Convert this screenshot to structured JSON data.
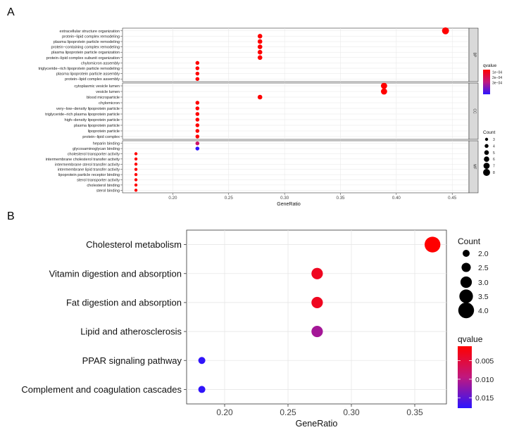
{
  "chart_data": [
    {
      "panel": "A",
      "type": "scatter",
      "xlabel": "GeneRatio",
      "xlim": [
        0.155,
        0.465
      ],
      "xticks": [
        0.2,
        0.25,
        0.3,
        0.35,
        0.4,
        0.45
      ],
      "xtick_labels": [
        "0.20",
        "0.25",
        "0.30",
        "0.35",
        "0.40",
        "0.45"
      ],
      "facets": [
        {
          "name": "BP",
          "terms": [
            {
              "label": "extracellular structure organization",
              "x": 0.444,
              "count": 8,
              "q": 5e-05
            },
            {
              "label": "protein−lipid complex remodeling",
              "x": 0.278,
              "count": 5,
              "q": 5e-05
            },
            {
              "label": "plasma lipoprotein particle remodeling",
              "x": 0.278,
              "count": 5,
              "q": 5e-05
            },
            {
              "label": "protein−containing complex remodeling",
              "x": 0.278,
              "count": 5,
              "q": 5e-05
            },
            {
              "label": "plasma lipoprotein particle organization",
              "x": 0.278,
              "count": 5,
              "q": 5e-05
            },
            {
              "label": "protein−lipid complex subunit organization",
              "x": 0.278,
              "count": 5,
              "q": 5e-05
            },
            {
              "label": "chylomicron assembly",
              "x": 0.222,
              "count": 4,
              "q": 5e-05
            },
            {
              "label": "triglyceride−rich lipoprotein particle remodeling",
              "x": 0.222,
              "count": 4,
              "q": 5e-05
            },
            {
              "label": "plasma lipoprotein particle assembly",
              "x": 0.222,
              "count": 4,
              "q": 5e-05
            },
            {
              "label": "protein−lipid complex assembly",
              "x": 0.222,
              "count": 4,
              "q": 5e-05
            }
          ]
        },
        {
          "name": "CC",
          "terms": [
            {
              "label": "cytoplasmic vesicle lumen",
              "x": 0.389,
              "count": 7,
              "q": 5e-05
            },
            {
              "label": "vesicle lumen",
              "x": 0.389,
              "count": 7,
              "q": 5e-05
            },
            {
              "label": "blood microparticle",
              "x": 0.278,
              "count": 5,
              "q": 5e-05
            },
            {
              "label": "chylomicron",
              "x": 0.222,
              "count": 4,
              "q": 5e-05
            },
            {
              "label": "very−low−density lipoprotein particle",
              "x": 0.222,
              "count": 4,
              "q": 5e-05
            },
            {
              "label": "triglyceride−rich plasma lipoprotein particle",
              "x": 0.222,
              "count": 4,
              "q": 5e-05
            },
            {
              "label": "high−density lipoprotein particle",
              "x": 0.222,
              "count": 4,
              "q": 5e-05
            },
            {
              "label": "plasma lipoprotein particle",
              "x": 0.222,
              "count": 4,
              "q": 5e-05
            },
            {
              "label": "lipoprotein particle",
              "x": 0.222,
              "count": 4,
              "q": 5e-05
            },
            {
              "label": "protein−lipid complex",
              "x": 0.222,
              "count": 4,
              "q": 5e-05
            }
          ]
        },
        {
          "name": "MF",
          "terms": [
            {
              "label": "heparin binding",
              "x": 0.222,
              "count": 4,
              "q": 0.00024
            },
            {
              "label": "glycosaminoglycan binding",
              "x": 0.222,
              "count": 4,
              "q": 0.00052
            },
            {
              "label": "cholesterol transporter activity",
              "x": 0.167,
              "count": 3,
              "q": 5e-05
            },
            {
              "label": "intermembrane cholesterol transfer activity",
              "x": 0.167,
              "count": 3,
              "q": 5e-05
            },
            {
              "label": "intermembrane sterol transfer activity",
              "x": 0.167,
              "count": 3,
              "q": 5e-05
            },
            {
              "label": "intermembrane lipid transfer activity",
              "x": 0.167,
              "count": 3,
              "q": 5e-05
            },
            {
              "label": "lipoprotein particle receptor binding",
              "x": 0.167,
              "count": 3,
              "q": 5e-05
            },
            {
              "label": "sterol transporter activity",
              "x": 0.167,
              "count": 3,
              "q": 5e-05
            },
            {
              "label": "cholesterol binding",
              "x": 0.167,
              "count": 3,
              "q": 5e-05
            },
            {
              "label": "sterol binding",
              "x": 0.167,
              "count": 3,
              "q": 5e-05
            }
          ]
        }
      ],
      "legend": {
        "color_title": "qvalue",
        "color_labels": [
          "1e−04",
          "2e−04",
          "3e−04"
        ],
        "color_values": [
          0.0001,
          0.0002,
          0.0003
        ],
        "color_range": [
          5e-05,
          0.00052
        ],
        "size_title": "Count",
        "size_values": [
          3,
          4,
          5,
          6,
          7,
          8
        ]
      }
    },
    {
      "panel": "B",
      "type": "scatter",
      "xlabel": "GeneRatio",
      "xlim": [
        0.17,
        0.375
      ],
      "xticks": [
        0.2,
        0.25,
        0.3,
        0.35
      ],
      "xtick_labels": [
        "0.20",
        "0.25",
        "0.30",
        "0.35"
      ],
      "terms": [
        {
          "label": "Cholesterol metabolism",
          "x": 0.364,
          "count": 4,
          "q": 0.0011
        },
        {
          "label": "Vitamin digestion and absorption",
          "x": 0.273,
          "count": 3,
          "q": 0.0032
        },
        {
          "label": "Fat digestion and absorption",
          "x": 0.273,
          "count": 3,
          "q": 0.0032
        },
        {
          "label": "Lipid and atherosclerosis",
          "x": 0.273,
          "count": 3,
          "q": 0.011
        },
        {
          "label": "PPAR signaling pathway",
          "x": 0.182,
          "count": 2,
          "q": 0.0175
        },
        {
          "label": "Complement and coagulation cascades",
          "x": 0.182,
          "count": 2,
          "q": 0.0175
        }
      ],
      "legend": {
        "size_title": "Count",
        "size_labels": [
          "2.0",
          "2.5",
          "3.0",
          "3.5",
          "4.0"
        ],
        "size_values": [
          2.0,
          2.5,
          3.0,
          3.5,
          4.0
        ],
        "color_title": "qvalue",
        "color_labels": [
          "0.005",
          "0.010",
          "0.015"
        ],
        "color_values": [
          0.005,
          0.01,
          0.015
        ],
        "color_range": [
          0.0011,
          0.0178
        ]
      }
    }
  ],
  "panel_labels": {
    "a": "A",
    "b": "B"
  },
  "colors": {
    "low": "#ff0000",
    "high": "#2b14ff",
    "grid": "#e6e6e6",
    "strip": "#d9d9d9"
  }
}
